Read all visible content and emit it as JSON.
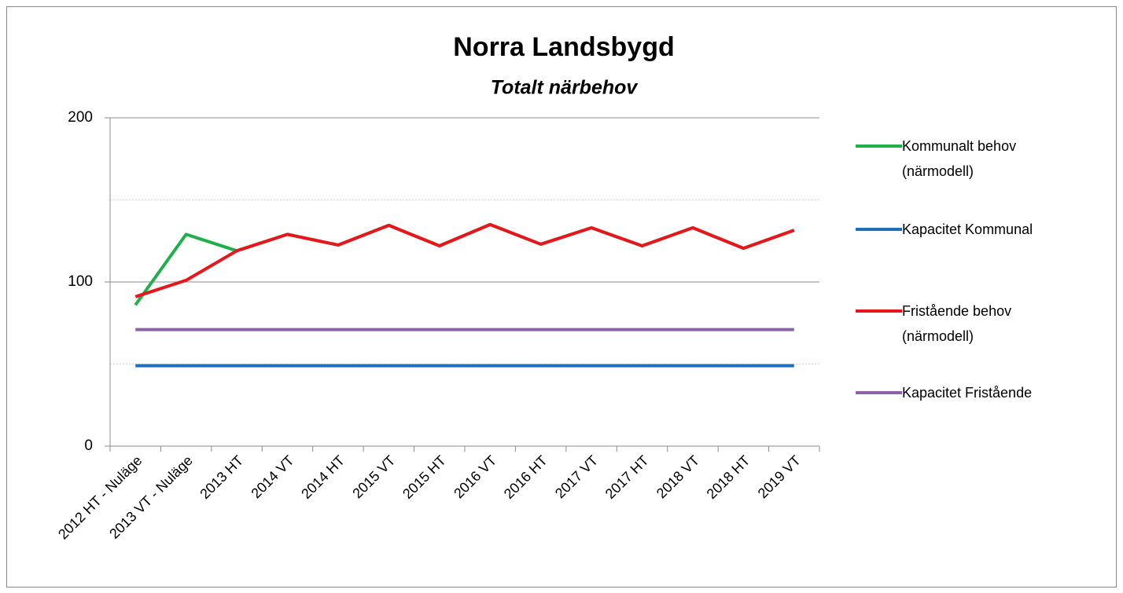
{
  "chart_data": {
    "type": "line",
    "title": "Norra Landsbygd",
    "subtitle": "Totalt närbehov",
    "categories": [
      "2012 HT - Nuläge",
      "2013 VT - Nuläge",
      "2013 HT",
      "2014 VT",
      "2014 HT",
      "2015 VT",
      "2015 HT",
      "2016 VT",
      "2016 HT",
      "2017 VT",
      "2017 HT",
      "2018 VT",
      "2018 HT",
      "2019 VT"
    ],
    "series": [
      {
        "name": "Kommunalt behov (närmodell)",
        "color": "#1fb04b",
        "values": [
          86,
          129,
          119,
          129,
          122.5,
          134.5,
          122,
          135,
          123,
          133,
          122,
          133,
          120.5,
          131.5
        ]
      },
      {
        "name": "Kapacitet Kommunal",
        "color": "#1f6fba",
        "values": [
          49,
          49,
          49,
          49,
          49,
          49,
          49,
          49,
          49,
          49,
          49,
          49,
          49,
          49
        ]
      },
      {
        "name": "Fristående behov (närmodell)",
        "color": "#e8161b",
        "values": [
          91,
          101,
          119,
          129,
          122.5,
          134.5,
          122,
          135,
          123,
          133,
          122,
          133,
          120.5,
          131.5
        ]
      },
      {
        "name": "Kapacitet Fristående",
        "color": "#8a63aa",
        "values": [
          71,
          71,
          71,
          71,
          71,
          71,
          71,
          71,
          71,
          71,
          71,
          71,
          71,
          71
        ]
      }
    ],
    "ylim": [
      0,
      200
    ],
    "yticks": [
      0,
      100,
      200
    ],
    "minor_yticks": [
      50,
      150
    ],
    "grid": true,
    "legend": "right"
  }
}
